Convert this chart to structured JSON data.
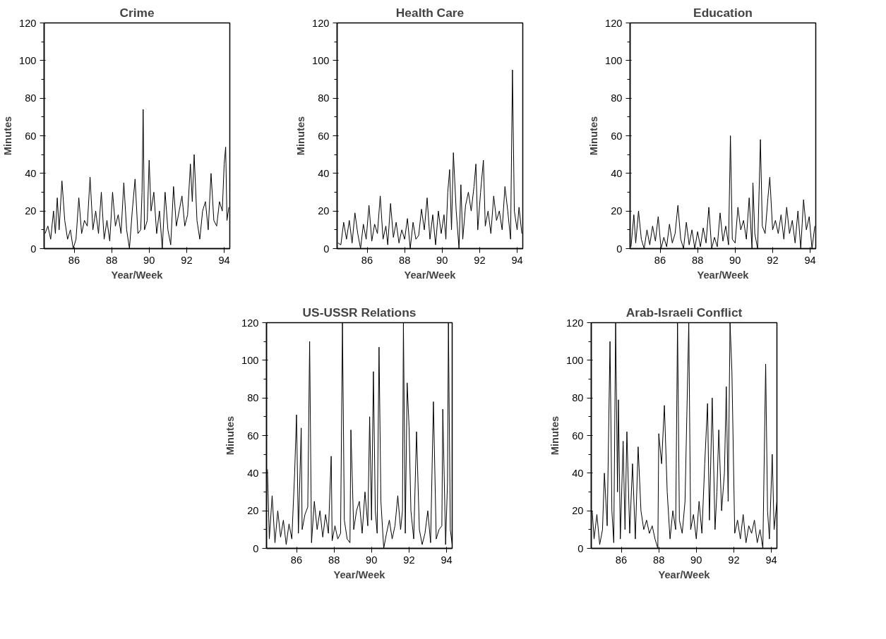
{
  "chart_data": [
    {
      "type": "line",
      "title": "Crime",
      "xlabel": "Year/Week",
      "ylabel": "Minutes",
      "xlim": [
        84.4,
        94.3
      ],
      "ylim": [
        0,
        120
      ],
      "xticks": [
        86,
        88,
        90,
        92,
        94
      ],
      "yticks": [
        0,
        20,
        40,
        60,
        80,
        100,
        120
      ],
      "series": [
        {
          "color": "#000000",
          "x": [
            84.45,
            84.6,
            84.75,
            84.9,
            85.0,
            85.1,
            85.2,
            85.35,
            85.5,
            85.65,
            85.8,
            85.95,
            86.1,
            86.25,
            86.4,
            86.55,
            86.7,
            86.85,
            87.0,
            87.15,
            87.3,
            87.45,
            87.6,
            87.75,
            87.9,
            88.05,
            88.2,
            88.35,
            88.5,
            88.65,
            88.8,
            88.95,
            89.1,
            89.25,
            89.4,
            89.55,
            89.62,
            89.68,
            89.75,
            89.9,
            90.0,
            90.1,
            90.25,
            90.4,
            90.55,
            90.7,
            90.85,
            91.0,
            91.15,
            91.3,
            91.45,
            91.6,
            91.75,
            91.9,
            92.05,
            92.2,
            92.3,
            92.4,
            92.55,
            92.7,
            92.85,
            93.0,
            93.15,
            93.3,
            93.45,
            93.6,
            93.75,
            93.9,
            94.0,
            94.08,
            94.15,
            94.25
          ],
          "values": [
            8,
            12,
            5,
            20,
            8,
            27,
            10,
            36,
            15,
            5,
            10,
            0,
            5,
            27,
            8,
            15,
            12,
            38,
            10,
            20,
            8,
            30,
            5,
            15,
            4,
            30,
            12,
            18,
            8,
            35,
            10,
            0,
            20,
            37,
            8,
            10,
            30,
            74,
            10,
            15,
            47,
            20,
            30,
            8,
            20,
            0,
            30,
            10,
            2,
            33,
            12,
            20,
            28,
            12,
            18,
            45,
            25,
            50,
            15,
            5,
            20,
            25,
            10,
            40,
            15,
            12,
            25,
            20,
            45,
            54,
            15,
            22
          ]
        }
      ]
    },
    {
      "type": "line",
      "title": "Health Care",
      "xlabel": "Year/Week",
      "ylabel": "Minutes",
      "xlim": [
        84.4,
        94.3
      ],
      "ylim": [
        0,
        120
      ],
      "xticks": [
        86,
        88,
        90,
        92,
        94
      ],
      "yticks": [
        0,
        20,
        40,
        60,
        80,
        100,
        120
      ],
      "series": [
        {
          "color": "#000000",
          "x": [
            84.45,
            84.6,
            84.75,
            84.9,
            85.05,
            85.2,
            85.35,
            85.5,
            85.65,
            85.8,
            85.95,
            86.1,
            86.25,
            86.4,
            86.55,
            86.7,
            86.85,
            87.0,
            87.1,
            87.25,
            87.4,
            87.55,
            87.7,
            87.85,
            88.0,
            88.15,
            88.3,
            88.45,
            88.6,
            88.75,
            88.9,
            89.05,
            89.2,
            89.35,
            89.5,
            89.65,
            89.8,
            89.95,
            90.1,
            90.2,
            90.3,
            90.4,
            90.5,
            90.6,
            90.75,
            90.9,
            91.0,
            91.1,
            91.25,
            91.4,
            91.55,
            91.7,
            91.8,
            91.9,
            92.05,
            92.2,
            92.3,
            92.45,
            92.6,
            92.75,
            92.9,
            93.05,
            93.2,
            93.35,
            93.5,
            93.65,
            93.75,
            93.85,
            94.0,
            94.1,
            94.25
          ],
          "values": [
            3,
            2,
            14,
            5,
            15,
            3,
            19,
            8,
            0,
            13,
            5,
            23,
            4,
            13,
            8,
            28,
            5,
            12,
            2,
            24,
            6,
            14,
            3,
            10,
            5,
            16,
            0,
            14,
            5,
            7,
            21,
            10,
            27,
            5,
            18,
            2,
            20,
            8,
            18,
            5,
            30,
            42,
            10,
            51,
            20,
            0,
            34,
            5,
            23,
            30,
            20,
            33,
            45,
            10,
            30,
            47,
            12,
            20,
            8,
            28,
            15,
            20,
            10,
            33,
            20,
            5,
            95,
            20,
            10,
            22,
            8
          ]
        }
      ]
    },
    {
      "type": "line",
      "title": "Education",
      "xlabel": "Year/Week",
      "ylabel": "Minutes",
      "xlim": [
        84.4,
        94.3
      ],
      "ylim": [
        0,
        120
      ],
      "xticks": [
        86,
        88,
        90,
        92,
        94
      ],
      "yticks": [
        0,
        20,
        40,
        60,
        80,
        100,
        120
      ],
      "series": [
        {
          "color": "#000000",
          "x": [
            84.45,
            84.6,
            84.7,
            84.85,
            85.0,
            85.15,
            85.3,
            85.45,
            85.6,
            85.75,
            85.9,
            86.05,
            86.2,
            86.35,
            86.5,
            86.65,
            86.8,
            86.95,
            87.1,
            87.25,
            87.4,
            87.55,
            87.7,
            87.85,
            88.0,
            88.15,
            88.3,
            88.45,
            88.6,
            88.75,
            88.9,
            89.05,
            89.2,
            89.35,
            89.5,
            89.65,
            89.75,
            89.85,
            90.0,
            90.15,
            90.3,
            90.45,
            90.6,
            90.75,
            90.9,
            90.95,
            91.05,
            91.2,
            91.35,
            91.45,
            91.6,
            91.75,
            91.85,
            92.0,
            92.15,
            92.3,
            92.45,
            92.6,
            92.75,
            92.9,
            93.05,
            93.2,
            93.35,
            93.5,
            93.65,
            93.8,
            93.95,
            94.1,
            94.25
          ],
          "values": [
            1,
            18,
            3,
            20,
            5,
            0,
            10,
            2,
            12,
            4,
            17,
            0,
            6,
            1,
            13,
            3,
            8,
            23,
            5,
            0,
            14,
            2,
            10,
            0,
            9,
            1,
            11,
            3,
            22,
            0,
            6,
            1,
            19,
            4,
            12,
            2,
            60,
            5,
            3,
            22,
            10,
            15,
            5,
            27,
            0,
            35,
            8,
            0,
            58,
            12,
            8,
            27,
            38,
            10,
            15,
            8,
            18,
            5,
            22,
            8,
            15,
            3,
            20,
            0,
            26,
            10,
            17,
            0,
            12
          ]
        }
      ]
    },
    {
      "type": "line",
      "title": "US-USSR Relations",
      "xlabel": "Year/Week",
      "ylabel": "Minutes",
      "xlim": [
        84.4,
        94.3
      ],
      "ylim": [
        0,
        120
      ],
      "xticks": [
        86,
        88,
        90,
        92,
        94
      ],
      "yticks": [
        0,
        20,
        40,
        60,
        80,
        100,
        120
      ],
      "series": [
        {
          "color": "#000000",
          "x": [
            84.45,
            84.55,
            84.7,
            84.85,
            85.0,
            85.15,
            85.3,
            85.45,
            85.6,
            85.75,
            85.9,
            86.0,
            86.1,
            86.25,
            86.3,
            86.45,
            86.6,
            86.7,
            86.8,
            86.95,
            87.1,
            87.25,
            87.4,
            87.55,
            87.7,
            87.85,
            87.9,
            88.05,
            88.2,
            88.35,
            88.45,
            88.55,
            88.7,
            88.85,
            88.9,
            89.05,
            89.2,
            89.35,
            89.5,
            89.65,
            89.8,
            89.9,
            90.0,
            90.1,
            90.2,
            90.3,
            90.4,
            90.5,
            90.65,
            90.8,
            90.95,
            91.1,
            91.25,
            91.4,
            91.55,
            91.65,
            91.7,
            91.8,
            91.9,
            92.0,
            92.1,
            92.25,
            92.4,
            92.55,
            92.7,
            92.85,
            93.0,
            93.15,
            93.3,
            93.45,
            93.6,
            93.75,
            93.8,
            93.95,
            94.05,
            94.1,
            94.2,
            94.3
          ],
          "values": [
            42,
            5,
            28,
            3,
            20,
            6,
            15,
            2,
            13,
            5,
            40,
            71,
            8,
            64,
            10,
            18,
            22,
            110,
            3,
            25,
            10,
            20,
            6,
            18,
            8,
            49,
            4,
            12,
            5,
            8,
            120,
            15,
            5,
            3,
            63,
            10,
            20,
            25,
            8,
            30,
            12,
            70,
            15,
            94,
            20,
            8,
            107,
            25,
            0,
            8,
            15,
            5,
            12,
            28,
            10,
            20,
            120,
            8,
            88,
            65,
            20,
            5,
            62,
            10,
            2,
            8,
            20,
            3,
            78,
            5,
            10,
            12,
            74,
            2,
            35,
            120,
            10,
            2
          ]
        }
      ]
    },
    {
      "type": "line",
      "title": "Arab-Israeli Conflict",
      "xlabel": "Year/Week",
      "ylabel": "Minutes",
      "xlim": [
        84.4,
        94.3
      ],
      "ylim": [
        0,
        120
      ],
      "xticks": [
        86,
        88,
        90,
        92,
        94
      ],
      "yticks": [
        0,
        20,
        40,
        60,
        80,
        100,
        120
      ],
      "series": [
        {
          "color": "#000000",
          "x": [
            84.45,
            84.55,
            84.7,
            84.85,
            85.0,
            85.1,
            85.25,
            85.4,
            85.5,
            85.6,
            85.7,
            85.8,
            85.85,
            85.95,
            86.1,
            86.2,
            86.3,
            86.45,
            86.6,
            86.75,
            86.9,
            87.05,
            87.2,
            87.35,
            87.5,
            87.65,
            87.8,
            87.95,
            88.0,
            88.15,
            88.3,
            88.45,
            88.6,
            88.75,
            88.9,
            89.0,
            89.1,
            89.25,
            89.4,
            89.6,
            89.7,
            89.85,
            90.0,
            90.15,
            90.3,
            90.45,
            90.6,
            90.7,
            90.85,
            91.0,
            91.1,
            91.2,
            91.35,
            91.5,
            91.6,
            91.7,
            91.8,
            91.9,
            92.05,
            92.2,
            92.35,
            92.5,
            92.65,
            92.8,
            92.95,
            93.1,
            93.25,
            93.4,
            93.55,
            93.7,
            93.8,
            93.9,
            94.05,
            94.15,
            94.3
          ],
          "values": [
            20,
            5,
            18,
            2,
            10,
            40,
            12,
            110,
            20,
            3,
            120,
            30,
            79,
            5,
            57,
            10,
            62,
            8,
            45,
            5,
            54,
            20,
            10,
            15,
            8,
            12,
            5,
            0,
            61,
            45,
            76,
            30,
            5,
            20,
            10,
            120,
            15,
            8,
            25,
            120,
            10,
            18,
            5,
            25,
            8,
            45,
            77,
            15,
            80,
            10,
            30,
            63,
            20,
            40,
            86,
            25,
            120,
            94,
            8,
            15,
            5,
            18,
            3,
            12,
            8,
            15,
            3,
            10,
            0,
            98,
            20,
            5,
            50,
            10,
            25
          ]
        }
      ]
    }
  ]
}
